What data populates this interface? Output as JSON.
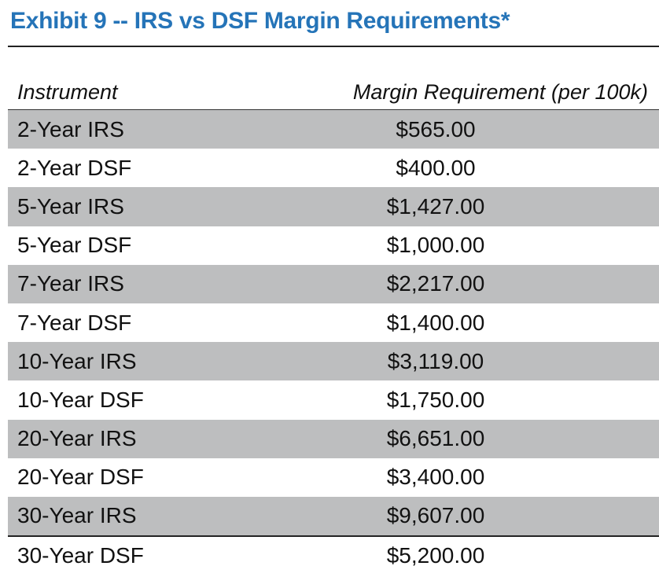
{
  "title": "Exhibit 9 -- IRS vs DSF Margin Requirements*",
  "table": {
    "headers": {
      "instrument": "Instrument",
      "margin": "Margin Requirement (per 100k)"
    },
    "rows": [
      {
        "instrument": "2-Year IRS",
        "margin": "$565.00"
      },
      {
        "instrument": "2-Year DSF",
        "margin": "$400.00"
      },
      {
        "instrument": "5-Year IRS",
        "margin": "$1,427.00"
      },
      {
        "instrument": "5-Year DSF",
        "margin": "$1,000.00"
      },
      {
        "instrument": "7-Year IRS",
        "margin": "$2,217.00"
      },
      {
        "instrument": "7-Year DSF",
        "margin": "$1,400.00"
      },
      {
        "instrument": "10-Year IRS",
        "margin": "$3,119.00"
      },
      {
        "instrument": "10-Year DSF",
        "margin": "$1,750.00"
      },
      {
        "instrument": "20-Year IRS",
        "margin": "$6,651.00"
      },
      {
        "instrument": "20-Year DSF",
        "margin": "$3,400.00"
      },
      {
        "instrument": "30-Year IRS",
        "margin": "$9,607.00"
      },
      {
        "instrument": "30-Year DSF",
        "margin": "$5,200.00"
      }
    ]
  },
  "colors": {
    "title": "#2574b8",
    "row_shade": "#bdbebf"
  }
}
